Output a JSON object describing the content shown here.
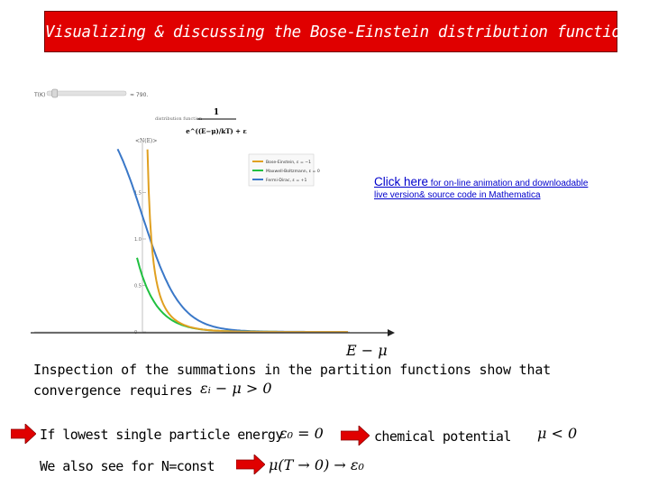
{
  "slide": {
    "title": "Visualizing & discussing the Bose-Einstein distribution function"
  },
  "figure": {
    "slider_label": "T(K)",
    "slider_value": "≈ 790.",
    "slider_fraction": 0.1,
    "formula_caption": "distribution function",
    "formula_numerator": "1",
    "formula_denominator": "e^((E−μ)/kT) + ε",
    "y_axis_label": "<N(E)>",
    "legend": [
      {
        "name": "Bose-Einstein, ε = −1",
        "color": "#e0a020"
      },
      {
        "name": "Maxwell-Boltzmann, ε = 0",
        "color": "#20c040"
      },
      {
        "name": "Fermi-Dirac, ε = +1",
        "color": "#3a78c8"
      }
    ],
    "y_ticks": [
      "1.5",
      "1.0",
      "0.5",
      "0"
    ],
    "x_axis_label": "E − μ"
  },
  "link": {
    "click_text": "Click here",
    "rest_line1": " for on-line animation and downloadable",
    "line2": "live version& source code in Mathematica"
  },
  "body": {
    "inspection_line1": "Inspection of the summations in the partition functions show that",
    "inspection_line2": "convergence requires",
    "condition_expr": "εᵢ − μ > 0",
    "lowest_energy_text": "If lowest single particle energy",
    "lowest_energy_expr": "ε₀ = 0",
    "chem_potential_text": "chemical potential",
    "chem_potential_expr": "μ < 0",
    "n_const_text": "We also see for N=const",
    "n_const_expr": "μ(T → 0) → ε₀"
  },
  "colors": {
    "title_bg": "#e00000",
    "arrow_red": "#e00000",
    "link_blue": "#0000cc"
  }
}
